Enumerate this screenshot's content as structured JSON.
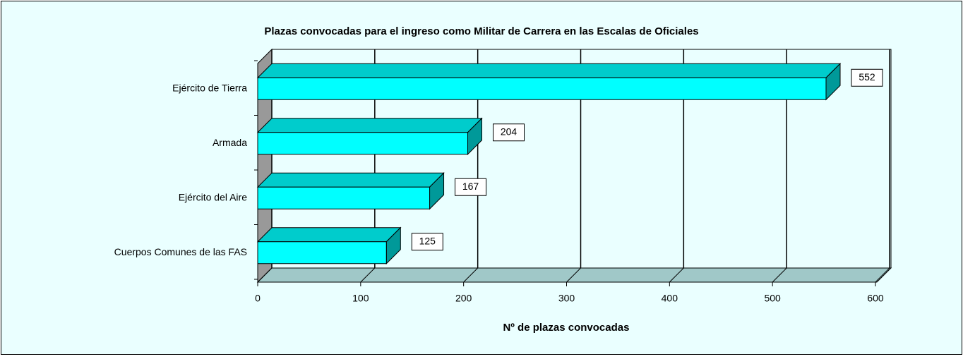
{
  "chart_data": {
    "type": "bar3d_horizontal",
    "title": "Plazas convocadas para el ingreso como Militar de Carrera en las Escalas de Oficiales",
    "x_label": "Nº de plazas convocadas",
    "categories": [
      "Ejército de Tierra",
      "Armada",
      "Ejército del Aire",
      "Cuerpos Comunes de las FAS"
    ],
    "values": [
      552,
      204,
      167,
      125
    ],
    "color": "#00ffff",
    "xlim": [
      0,
      600
    ],
    "xticks": [
      0,
      100,
      200,
      300,
      400,
      500,
      600
    ],
    "grid": true
  }
}
